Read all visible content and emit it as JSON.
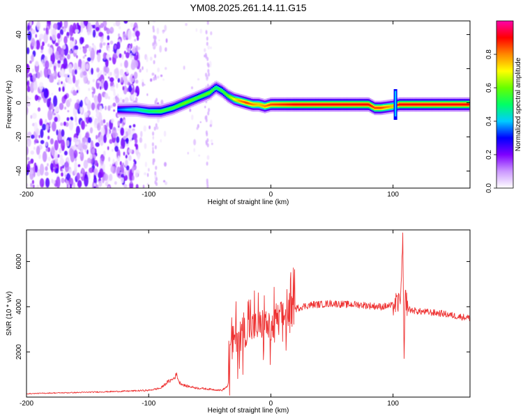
{
  "title": "YM08.2025.261.14.11.G15",
  "chart_data": [
    {
      "type": "heatmap",
      "name": "spectrogram",
      "xlabel": "Height of straight line (km)",
      "ylabel": "Frequency (Hz)",
      "xlim": [
        -200,
        163
      ],
      "ylim": [
        -50,
        48
      ],
      "xticks": [
        -200,
        -100,
        0,
        100
      ],
      "yticks": [
        -40,
        -20,
        0,
        20,
        40
      ],
      "colorbar": {
        "label": "Normalized spectral amplitude",
        "range": [
          0,
          1
        ],
        "ticks": [
          0.0,
          0.2,
          0.4,
          0.6,
          0.8
        ],
        "tick_labels": [
          "0.0",
          "0.2",
          "0.4",
          "0.6",
          "0.8"
        ],
        "colors": [
          "#ffffff",
          "#cc99ff",
          "#7f00ff",
          "#0000ff",
          "#00ccff",
          "#00ff66",
          "#66ff00",
          "#ffff00",
          "#ff8800",
          "#ff0000",
          "#ff00aa"
        ]
      },
      "signal_ridge": {
        "x": [
          -125,
          -110,
          -100,
          -90,
          -80,
          -70,
          -60,
          -50,
          -45,
          -40,
          -35,
          -30,
          -25,
          -20,
          -15,
          -10,
          -5,
          0,
          20,
          40,
          60,
          80,
          85,
          90,
          100,
          105,
          120,
          140,
          163
        ],
        "freq": [
          -4,
          -4,
          -5,
          -5,
          -3,
          0,
          3,
          6,
          9,
          7,
          4,
          2,
          1,
          0,
          -1,
          -1,
          -2,
          -1,
          -1,
          -1,
          -1,
          -1,
          -3,
          -3,
          -2,
          -1,
          -1,
          -1,
          -1
        ],
        "amplitude": [
          0.35,
          0.45,
          0.5,
          0.55,
          0.55,
          0.6,
          0.55,
          0.6,
          0.5,
          0.55,
          0.6,
          0.7,
          0.8,
          0.85,
          0.8,
          0.75,
          0.8,
          0.85,
          0.9,
          0.9,
          0.9,
          0.9,
          0.85,
          0.85,
          0.75,
          0.9,
          0.9,
          0.9,
          0.9
        ]
      },
      "spike_at_x": 102
    },
    {
      "type": "line",
      "name": "snr",
      "xlabel": "Height of straight line (km)",
      "ylabel": "SNR (10 * v/v)",
      "xlim": [
        -200,
        163
      ],
      "ylim": [
        0,
        7400
      ],
      "xticks": [
        -200,
        -100,
        0,
        100
      ],
      "yticks": [
        2000,
        4000,
        6000
      ],
      "color": "#ee3333",
      "series": [
        {
          "name": "SNR",
          "x": [
            -200,
            -180,
            -160,
            -140,
            -120,
            -100,
            -90,
            -85,
            -80,
            -77,
            -75,
            -70,
            -60,
            -50,
            -40,
            -35,
            -33,
            -30,
            -25,
            -20,
            -15,
            -10,
            -5,
            0,
            5,
            10,
            15,
            20,
            25,
            30,
            35,
            40,
            50,
            60,
            70,
            80,
            90,
            100,
            105,
            107,
            108,
            109,
            110,
            112,
            115,
            120,
            130,
            140,
            150,
            163
          ],
          "y": [
            150,
            180,
            200,
            230,
            260,
            300,
            400,
            650,
            800,
            1000,
            650,
            500,
            400,
            350,
            300,
            500,
            2200,
            2600,
            2800,
            3000,
            3100,
            3100,
            3300,
            2900,
            3400,
            3600,
            3700,
            3900,
            4000,
            4050,
            4100,
            4100,
            4150,
            4100,
            4100,
            4050,
            4000,
            4050,
            4200,
            5000,
            7300,
            1100,
            4600,
            3900,
            3850,
            3800,
            3750,
            3700,
            3600,
            3500
          ]
        }
      ]
    }
  ]
}
